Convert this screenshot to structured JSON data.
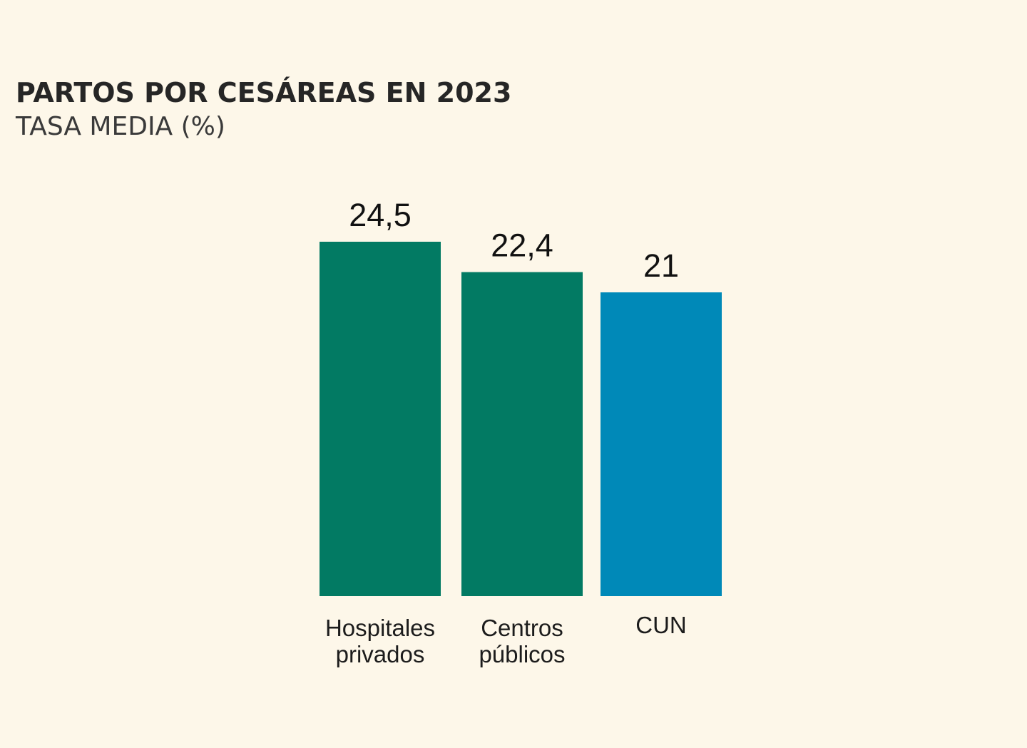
{
  "chart_data": {
    "type": "bar",
    "title": "PARTOS POR CESÁREAS EN 2023",
    "subtitle": "TASA MEDIA (%)",
    "categories": [
      [
        "Hospitales",
        "privados"
      ],
      [
        "Centros",
        "públicos"
      ],
      [
        "CUN"
      ]
    ],
    "values": [
      24.5,
      22.4,
      21
    ],
    "value_labels": [
      "24,5",
      "22,4",
      "21"
    ],
    "colors": [
      "#027a63",
      "#027a63",
      "#0089b8"
    ],
    "ylim": [
      0,
      24.5
    ],
    "xlabel": "",
    "ylabel": "",
    "grid": false
  }
}
